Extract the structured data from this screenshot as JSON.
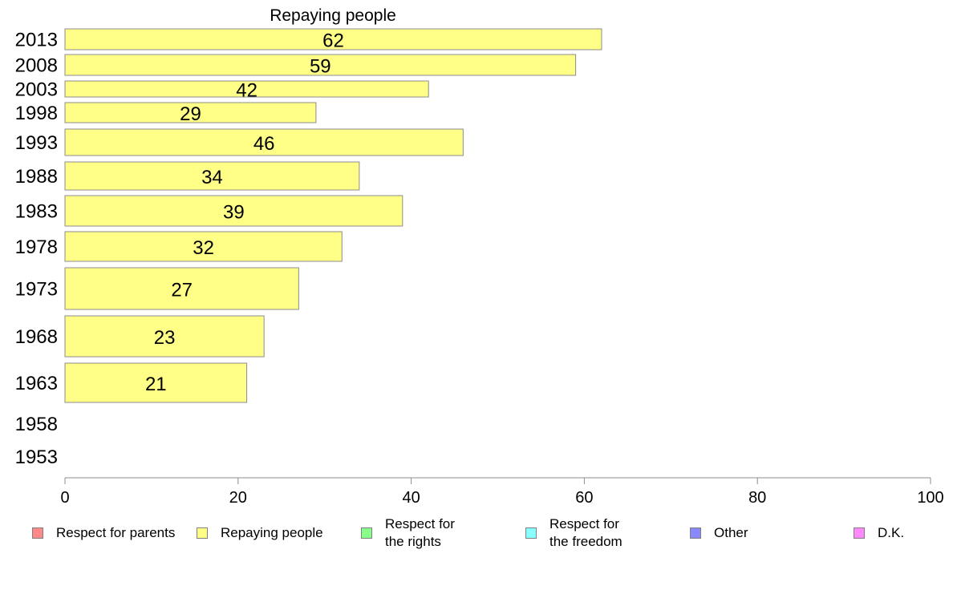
{
  "chart_data": {
    "type": "bar",
    "orientation": "horizontal",
    "title": "Repaying people",
    "categories": [
      "2013",
      "2008",
      "2003",
      "1998",
      "1993",
      "1988",
      "1983",
      "1978",
      "1973",
      "1968",
      "1963",
      "1958",
      "1953"
    ],
    "series": [
      {
        "name": "Repaying people",
        "color": "#ffff88",
        "values": [
          62,
          59,
          42,
          29,
          46,
          34,
          39,
          32,
          27,
          23,
          21,
          null,
          null
        ]
      }
    ],
    "xlim": [
      0,
      100
    ],
    "xticks": [
      0,
      20,
      40,
      60,
      80,
      100
    ],
    "grid": false,
    "legend_position": "bottom",
    "legend": [
      {
        "label": "Respect for parents",
        "color": "#ff8888"
      },
      {
        "label": "Repaying people",
        "color": "#ffff88"
      },
      {
        "label": "Respect for\nthe rights",
        "color": "#88ff88"
      },
      {
        "label": "Respect for\nthe freedom",
        "color": "#88ffff"
      },
      {
        "label": "Other",
        "color": "#8888ff"
      },
      {
        "label": "D.K.",
        "color": "#ff88ff"
      }
    ]
  }
}
